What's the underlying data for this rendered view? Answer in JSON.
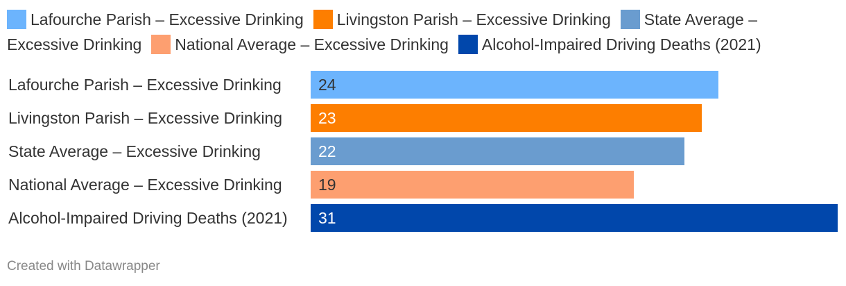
{
  "chart_data": {
    "type": "bar",
    "orientation": "horizontal",
    "categories": [
      "Lafourche Parish – Excessive Drinking",
      "Livingston Parish – Excessive Drinking",
      "State Average – Excessive Drinking",
      "National Average – Excessive Drinking",
      "Alcohol-Impaired Driving Deaths (2021)"
    ],
    "values": [
      24,
      23,
      22,
      19,
      31
    ],
    "colors": [
      "#6cb4fd",
      "#fd7e00",
      "#6a9ccf",
      "#fd9f70",
      "#0147ab"
    ],
    "value_label_colors": [
      "#333333",
      "#ffffff",
      "#ffffff",
      "#333333",
      "#ffffff"
    ],
    "legend": {
      "placement": "top",
      "entries": [
        "Lafourche Parish – Excessive Drinking",
        "Livingston Parish – Excessive Drinking",
        "State Average – Excessive Drinking",
        "National Average – Excessive Drinking",
        "Alcohol-Impaired Driving Deaths (2021)"
      ]
    },
    "xlim": [
      0,
      31
    ],
    "grid": false,
    "title": "",
    "xlabel": "",
    "ylabel": ""
  },
  "footer": {
    "credit": "Created with Datawrapper"
  }
}
